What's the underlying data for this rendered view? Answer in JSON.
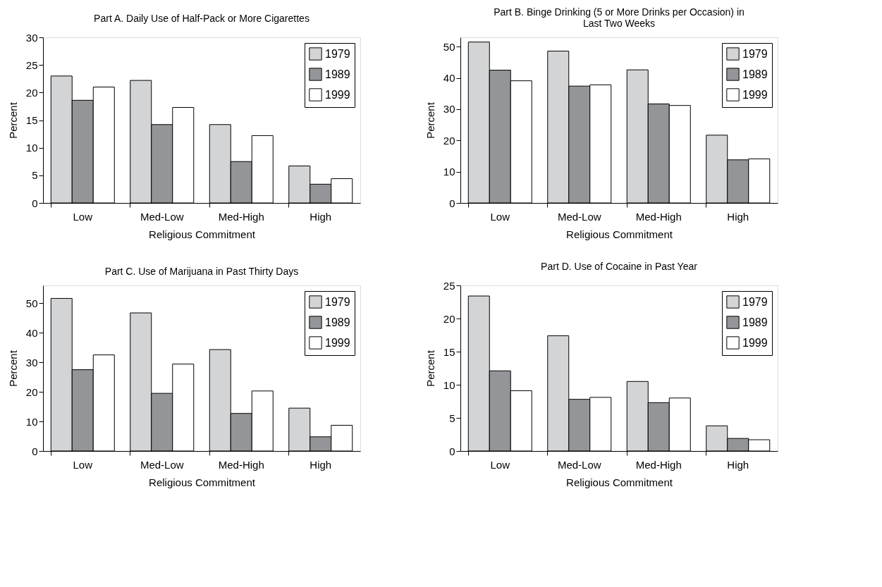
{
  "chart_data": [
    {
      "type": "bar",
      "title": "Part A.  Daily Use of Half-Pack or More Cigarettes",
      "xlabel": "Religious Commitment",
      "ylabel": "Percent",
      "categories": [
        "Low",
        "Med-Low",
        "Med-High",
        "High"
      ],
      "ylim": [
        0,
        30
      ],
      "yticks": [
        0,
        5,
        10,
        15,
        20,
        25,
        30
      ],
      "grid": false,
      "legend": "top right",
      "series": [
        {
          "name": "1979",
          "color": "#d3d4d6",
          "values": [
            23.0,
            22.2,
            14.2,
            6.7
          ]
        },
        {
          "name": "1989",
          "color": "#939598",
          "values": [
            18.6,
            14.2,
            7.5,
            3.4
          ]
        },
        {
          "name": "1999",
          "color": "#ffffff",
          "values": [
            21.0,
            17.3,
            12.2,
            4.4
          ]
        }
      ]
    },
    {
      "type": "bar",
      "title": "Part B.  Binge Drinking (5 or More Drinks per Occasion) in Last Two Weeks",
      "xlabel": "Religious Commitment",
      "ylabel": "Percent",
      "categories": [
        "Low",
        "Med-Low",
        "Med-High",
        "High"
      ],
      "ylim": [
        0,
        53
      ],
      "yticks": [
        0,
        10,
        20,
        30,
        40,
        50
      ],
      "grid": false,
      "legend": "top right",
      "series": [
        {
          "name": "1979",
          "color": "#d3d4d6",
          "values": [
            51.5,
            48.6,
            42.6,
            21.7
          ]
        },
        {
          "name": "1989",
          "color": "#939598",
          "values": [
            42.5,
            37.4,
            31.7,
            13.8
          ]
        },
        {
          "name": "1999",
          "color": "#ffffff",
          "values": [
            39.1,
            37.8,
            31.2,
            14.1
          ]
        }
      ]
    },
    {
      "type": "bar",
      "title": "Part C.  Use of Marijuana in Past Thirty Days",
      "xlabel": "Religious Commitment",
      "ylabel": "Percent",
      "categories": [
        "Low",
        "Med-Low",
        "Med-High",
        "High"
      ],
      "ylim": [
        0,
        56
      ],
      "yticks": [
        0,
        10,
        20,
        30,
        40,
        50
      ],
      "grid": false,
      "legend": "top right",
      "series": [
        {
          "name": "1979",
          "color": "#d3d4d6",
          "values": [
            51.6,
            46.7,
            34.3,
            14.5
          ]
        },
        {
          "name": "1989",
          "color": "#939598",
          "values": [
            27.5,
            19.5,
            12.7,
            4.8
          ]
        },
        {
          "name": "1999",
          "color": "#ffffff",
          "values": [
            32.5,
            29.4,
            20.3,
            8.7
          ]
        }
      ]
    },
    {
      "type": "bar",
      "title": "Part D.  Use of Cocaine in Past Year",
      "xlabel": "Religious Commitment",
      "ylabel": "Percent",
      "categories": [
        "Low",
        "Med-Low",
        "Med-High",
        "High"
      ],
      "ylim": [
        0,
        25
      ],
      "yticks": [
        0,
        5,
        10,
        15,
        20,
        25
      ],
      "grid": false,
      "legend": "top right",
      "series": [
        {
          "name": "1979",
          "color": "#d3d4d6",
          "values": [
            23.4,
            17.4,
            10.5,
            3.8
          ]
        },
        {
          "name": "1989",
          "color": "#939598",
          "values": [
            12.1,
            7.8,
            7.3,
            1.9
          ]
        },
        {
          "name": "1999",
          "color": "#ffffff",
          "values": [
            9.1,
            8.1,
            8.0,
            1.7
          ]
        }
      ]
    }
  ]
}
